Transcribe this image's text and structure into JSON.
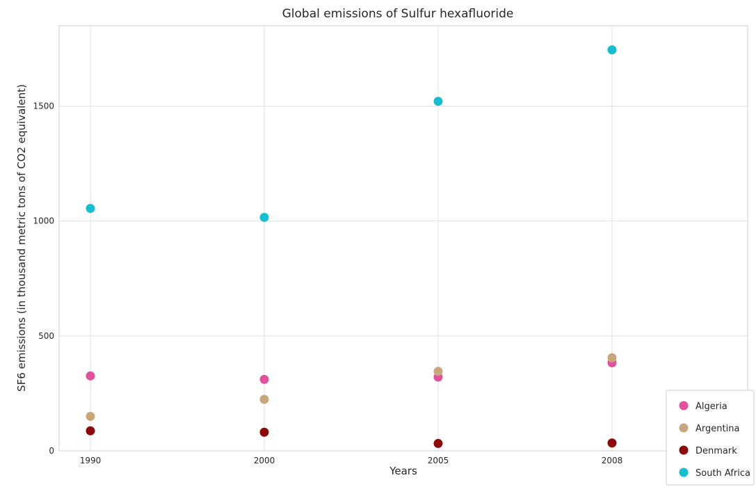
{
  "chart_data": {
    "type": "scatter",
    "title": "Global emissions of Sulfur hexafluoride",
    "xlabel": "Years",
    "ylabel": "SF6 emissions (in thousand metric tons of CO2 equivalent)",
    "categories": [
      "1990",
      "2000",
      "2005",
      "2008"
    ],
    "yticks": [
      "0",
      "500",
      "1000",
      "1500"
    ],
    "ylim": [
      0,
      1850
    ],
    "grid": true,
    "legend_position": "bottom-right",
    "series": [
      {
        "name": "Algeria",
        "color": "#e0529c",
        "values": [
          326,
          311,
          321,
          383
        ]
      },
      {
        "name": "Argentina",
        "color": "#c9a77c",
        "values": [
          150,
          224,
          346,
          405
        ]
      },
      {
        "name": "Denmark",
        "color": "#8b0a0a",
        "values": [
          87,
          81,
          32,
          34
        ]
      },
      {
        "name": "South Africa",
        "color": "#17becf",
        "values": [
          1055,
          1016,
          1521,
          1745
        ]
      }
    ]
  }
}
